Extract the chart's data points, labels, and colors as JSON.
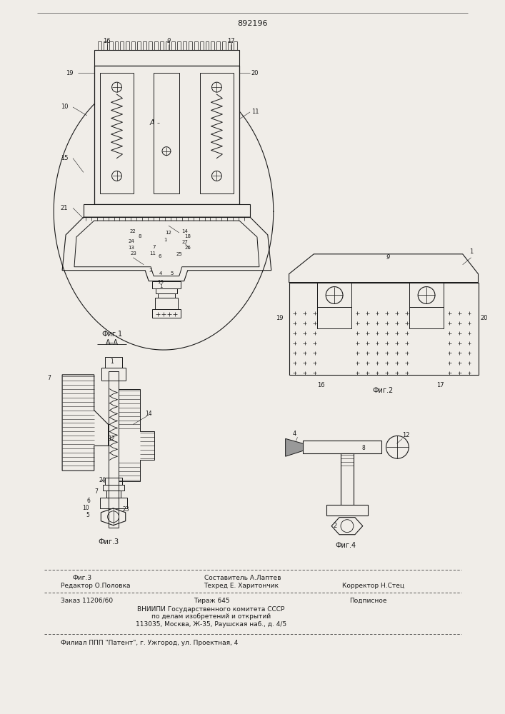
{
  "patent_number": "892196",
  "bg_color": "#f0ede8",
  "line_color": "#1a1a1a",
  "fig1_label": "Фиг.1",
  "fig2_label": "Фиг.2",
  "fig3_label": "Фиг.3",
  "fig4_label": "Фиг.4",
  "section_label": "А–А",
  "footer_col1_line1": "Фиг.3",
  "footer_col2_line1": "Составитель А.Лаптев",
  "footer_col1_line2": "Редактор О.Половка",
  "footer_col2_line2": "Техред Е. Харитончик",
  "footer_col3_line2": "Корректор Н.Стец",
  "footer_order": "Заказ 11206/60",
  "footer_tirazh": "Тираж 645",
  "footer_podp": "Подписное",
  "footer_vniip": "ВНИИПИ Государственного комитета СССР",
  "footer_po": "по делам изобретений и открытий",
  "footer_addr": "113035, Москва, Ж-35, Раушская наб., д. 4/5",
  "footer_filial": "Филиал ППП \"Патент\", г. Ужгород, ул. Проектная, 4"
}
